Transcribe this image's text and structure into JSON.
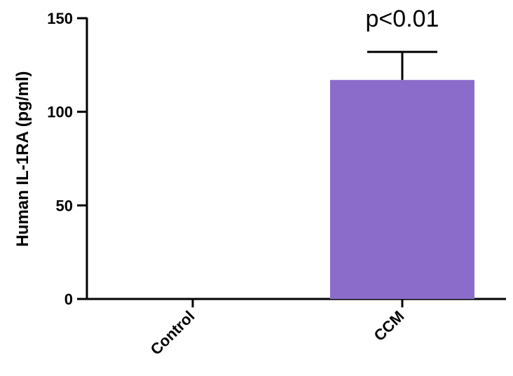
{
  "chart_data": {
    "type": "bar",
    "categories": [
      "Control",
      "CCM"
    ],
    "values": [
      0,
      117
    ],
    "error": [
      0,
      15
    ],
    "ylabel": "Human IL-1RA (pg/ml)",
    "xlabel": "",
    "ylim": [
      0,
      150
    ],
    "yticks": [
      "0",
      "50",
      "100",
      "150"
    ],
    "grid": false,
    "bar_color": "#8b6cca",
    "annotation": "p<0.01"
  }
}
